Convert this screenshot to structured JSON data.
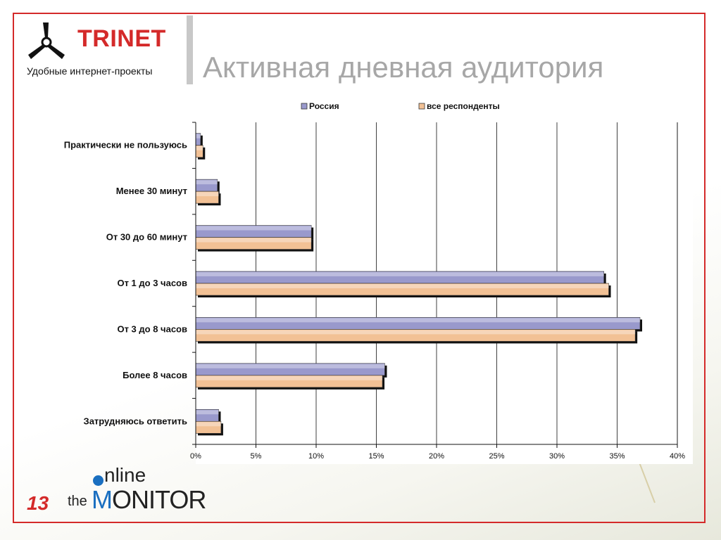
{
  "slide": {
    "title": "Активная дневная аудитория",
    "page_number": "13",
    "brand_color": "#d42a2a"
  },
  "logo": {
    "name": "TRINET",
    "tagline": "Удобные интернет-проекты"
  },
  "footer_logo": {
    "online": "nline",
    "the": "the",
    "monitor_first": "M",
    "monitor_rest": "ONITOR"
  },
  "chart_data": {
    "type": "bar",
    "orientation": "horizontal",
    "categories": [
      "Практически не пользуюсь",
      "Менее 30 минут",
      "От 30 до 60 минут",
      "От 1 до 3 часов",
      "От 3 до 8 часов",
      "Более 8 часов",
      "Затрудняюсь ответить"
    ],
    "series": [
      {
        "name": "Россия",
        "color": "#9999cc",
        "values": [
          0.4,
          1.8,
          9.6,
          33.9,
          36.9,
          15.7,
          1.9
        ]
      },
      {
        "name": "все респонденты",
        "color": "#f2c195",
        "values": [
          0.6,
          1.9,
          9.6,
          34.3,
          36.5,
          15.5,
          2.1
        ]
      }
    ],
    "xlim": [
      0,
      40
    ],
    "xticks": [
      "0%",
      "5%",
      "10%",
      "15%",
      "20%",
      "25%",
      "30%",
      "35%",
      "40%"
    ],
    "grid": "vertical",
    "legend_position": "top"
  }
}
